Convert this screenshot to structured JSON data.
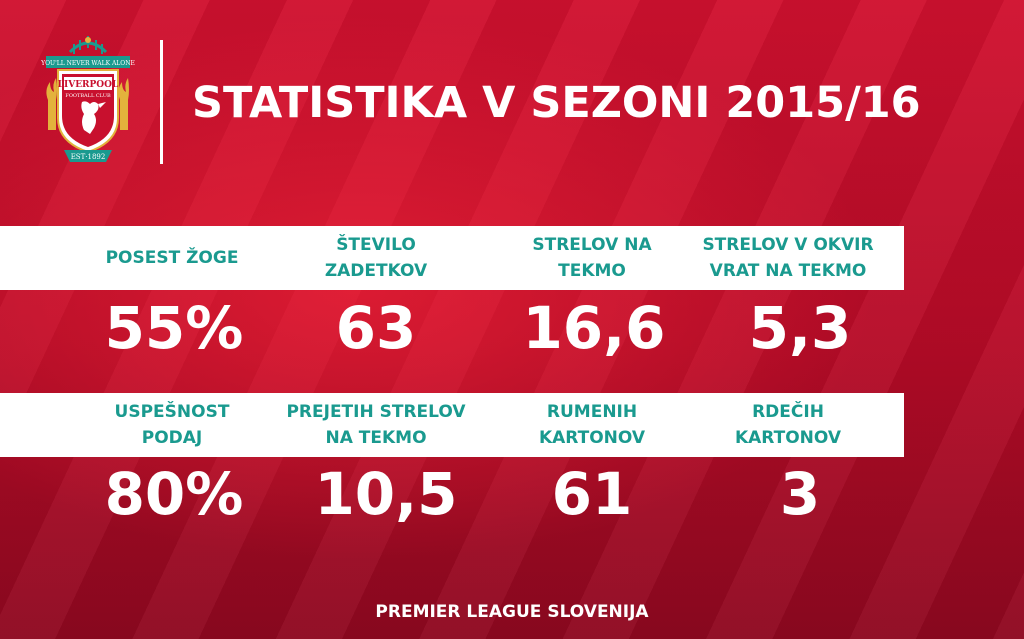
{
  "header": {
    "title": "STATISTIKA V SEZONI 2015/16"
  },
  "logo": {
    "motto": "YOU'LL NEVER WALK ALONE",
    "club_line1": "LIVERPOOL",
    "club_line2": "FOOTBALL CLUB",
    "established": "EST·1892",
    "colors": {
      "red": "#c8102e",
      "gold": "#e3b23c",
      "teal": "#1a9a8f"
    }
  },
  "stats_row1": [
    {
      "label_line1": "POSEST ŽOGE",
      "label_line2": "",
      "value": "55%"
    },
    {
      "label_line1": "ŠTEVILO",
      "label_line2": "ZADETKOV",
      "value": "63"
    },
    {
      "label_line1": "STRELOV NA",
      "label_line2": "TEKMO",
      "value": "16,6"
    },
    {
      "label_line1": "STRELOV V OKVIR",
      "label_line2": "VRAT NA TEKMO",
      "value": "5,3"
    }
  ],
  "stats_row2": [
    {
      "label_line1": "USPEŠNOST",
      "label_line2": "PODAJ",
      "value": "80%"
    },
    {
      "label_line1": "PREJETIH STRELOV",
      "label_line2": "NA TEKMO",
      "value": "10,5"
    },
    {
      "label_line1": "RUMENIH",
      "label_line2": "KARTONOV",
      "value": "61"
    },
    {
      "label_line1": "RDEČIH",
      "label_line2": "KARTONOV",
      "value": "3"
    }
  ],
  "footer": {
    "text": "PREMIER LEAGUE SLOVENIJA"
  },
  "theme": {
    "background": "#c8102e",
    "label_color": "#1a9a8f",
    "band_color": "#ffffff"
  }
}
